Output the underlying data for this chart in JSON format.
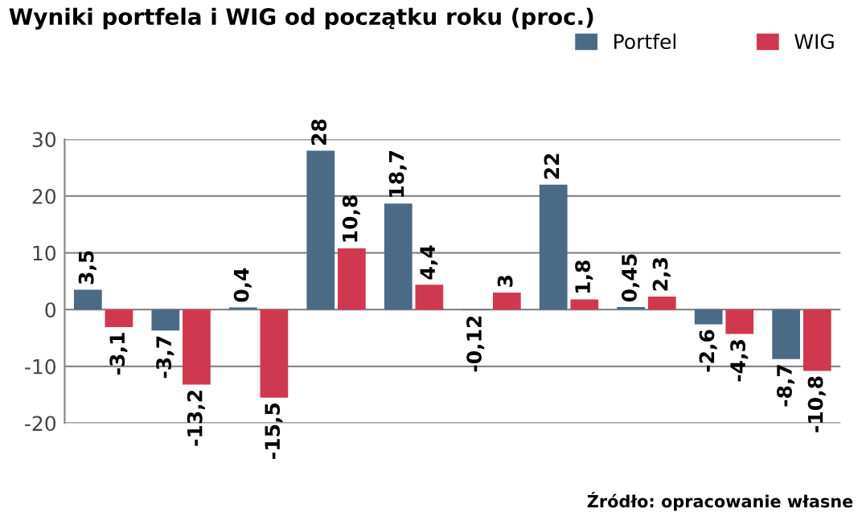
{
  "chart_data": {
    "type": "bar",
    "title": "Wyniki portfela i WIG od początku roku (proc.)",
    "categories": [
      null,
      null,
      null,
      null,
      null,
      null,
      null,
      null,
      null,
      null
    ],
    "series": [
      {
        "name": "Portfel",
        "color": "#4a6a85",
        "values": [
          3.5,
          -3.7,
          0.4,
          28,
          18.7,
          -0.12,
          22,
          0.45,
          -2.6,
          -8.7
        ],
        "value_labels": [
          "3,5",
          "-3,7",
          "0,4",
          "28",
          "18,7",
          "-0,12",
          "22",
          "0,45",
          "-2,6",
          "-8,7"
        ]
      },
      {
        "name": "WIG",
        "color": "#d0384f",
        "values": [
          -3.1,
          -13.2,
          -15.5,
          10.8,
          4.4,
          3,
          1.8,
          2.3,
          -4.3,
          -10.8
        ],
        "value_labels": [
          "-3,1",
          "-13,2",
          "-15,5",
          "10,8",
          "4,4",
          "3",
          "1,8",
          "2,3",
          "-4,3",
          "-10,8"
        ]
      }
    ],
    "ylim": [
      -20,
      30
    ],
    "yticks": [
      -20,
      -10,
      0,
      10,
      20,
      30
    ],
    "grid": "y",
    "legend": "top right",
    "annotations": [
      "Źródło: opracowanie własne"
    ]
  }
}
